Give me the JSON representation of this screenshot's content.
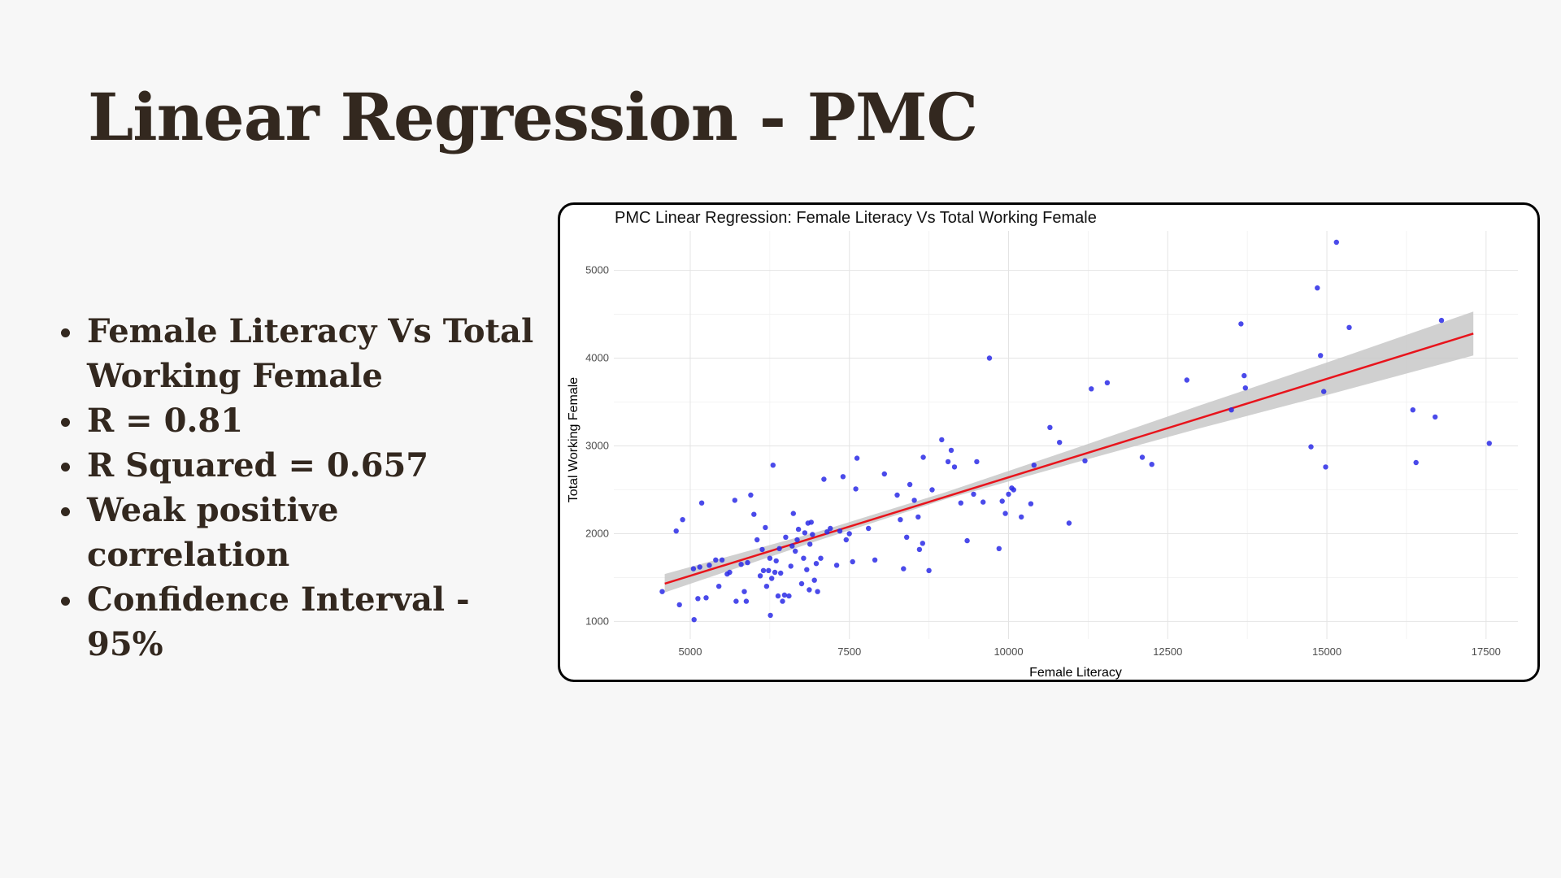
{
  "slide": {
    "title": "Linear Regression - PMC",
    "bullets": [
      "Female Literacy Vs Total Working Female",
      "R = 0.81",
      "R Squared = 0.657",
      "Weak positive correlation",
      "Confidence Interval - 95%"
    ]
  },
  "colors": {
    "title_text": "#33281f",
    "points": "#2a2ae6",
    "regression_line": "#e8141c",
    "confidence_band": "#c8c8c8"
  },
  "chart_data": {
    "type": "scatter",
    "title": "PMC Linear Regression: Female Literacy Vs Total Working Female",
    "xlabel": "Female Literacy",
    "ylabel": "Total Working Female",
    "xlim": [
      3800,
      18000
    ],
    "ylim": [
      800,
      5450
    ],
    "x_ticks": [
      5000,
      7500,
      10000,
      12500,
      15000,
      17500
    ],
    "y_ticks": [
      1000,
      2000,
      3000,
      4000,
      5000
    ],
    "x_tick_labels": [
      "5000",
      "7500",
      "10000",
      "12500",
      "15000",
      "17500"
    ],
    "y_tick_labels": [
      "1000",
      "2000",
      "3000",
      "4000",
      "5000"
    ],
    "grid": true,
    "legend": "none",
    "regression_line": {
      "from": {
        "x": 4600,
        "y": 1430
      },
      "to": {
        "x": 17300,
        "y": 4280
      },
      "confidence": 0.95,
      "band": [
        {
          "x": 4600,
          "lower": 1330,
          "upper": 1540
        },
        {
          "x": 7000,
          "lower": 1920,
          "upper": 2020
        },
        {
          "x": 9000,
          "lower": 2390,
          "upper": 2470
        },
        {
          "x": 11000,
          "lower": 2800,
          "upper": 2960
        },
        {
          "x": 13000,
          "lower": 3200,
          "upper": 3460
        },
        {
          "x": 15000,
          "lower": 3580,
          "upper": 3950
        },
        {
          "x": 17300,
          "lower": 4030,
          "upper": 4530
        }
      ]
    },
    "points": [
      {
        "x": 4560,
        "y": 1340
      },
      {
        "x": 4780,
        "y": 2030
      },
      {
        "x": 4880,
        "y": 2160
      },
      {
        "x": 4830,
        "y": 1190
      },
      {
        "x": 5050,
        "y": 1600
      },
      {
        "x": 5060,
        "y": 1020
      },
      {
        "x": 5120,
        "y": 1260
      },
      {
        "x": 5150,
        "y": 1620
      },
      {
        "x": 5180,
        "y": 2350
      },
      {
        "x": 5250,
        "y": 1270
      },
      {
        "x": 5300,
        "y": 1640
      },
      {
        "x": 5400,
        "y": 1700
      },
      {
        "x": 5450,
        "y": 1400
      },
      {
        "x": 5500,
        "y": 1700
      },
      {
        "x": 5580,
        "y": 1540
      },
      {
        "x": 5620,
        "y": 1560
      },
      {
        "x": 5700,
        "y": 2380
      },
      {
        "x": 5720,
        "y": 1230
      },
      {
        "x": 5800,
        "y": 1650
      },
      {
        "x": 5850,
        "y": 1340
      },
      {
        "x": 5880,
        "y": 1230
      },
      {
        "x": 5900,
        "y": 1670
      },
      {
        "x": 5950,
        "y": 2440
      },
      {
        "x": 6000,
        "y": 2220
      },
      {
        "x": 6050,
        "y": 1930
      },
      {
        "x": 6100,
        "y": 1520
      },
      {
        "x": 6130,
        "y": 1820
      },
      {
        "x": 6150,
        "y": 1580
      },
      {
        "x": 6180,
        "y": 2070
      },
      {
        "x": 6200,
        "y": 1400
      },
      {
        "x": 6230,
        "y": 1580
      },
      {
        "x": 6250,
        "y": 1720
      },
      {
        "x": 6260,
        "y": 1070
      },
      {
        "x": 6280,
        "y": 1490
      },
      {
        "x": 6300,
        "y": 2780
      },
      {
        "x": 6330,
        "y": 1560
      },
      {
        "x": 6350,
        "y": 1690
      },
      {
        "x": 6380,
        "y": 1290
      },
      {
        "x": 6400,
        "y": 1830
      },
      {
        "x": 6420,
        "y": 1550
      },
      {
        "x": 6450,
        "y": 1230
      },
      {
        "x": 6480,
        "y": 1300
      },
      {
        "x": 6500,
        "y": 1960
      },
      {
        "x": 6550,
        "y": 1290
      },
      {
        "x": 6580,
        "y": 1630
      },
      {
        "x": 6600,
        "y": 1860
      },
      {
        "x": 6620,
        "y": 2230
      },
      {
        "x": 6650,
        "y": 1800
      },
      {
        "x": 6680,
        "y": 1930
      },
      {
        "x": 6700,
        "y": 2050
      },
      {
        "x": 6750,
        "y": 1430
      },
      {
        "x": 6780,
        "y": 1720
      },
      {
        "x": 6800,
        "y": 2010
      },
      {
        "x": 6830,
        "y": 1590
      },
      {
        "x": 6850,
        "y": 2120
      },
      {
        "x": 6870,
        "y": 1360
      },
      {
        "x": 6880,
        "y": 1880
      },
      {
        "x": 6900,
        "y": 2130
      },
      {
        "x": 6920,
        "y": 1990
      },
      {
        "x": 6950,
        "y": 1470
      },
      {
        "x": 6980,
        "y": 1660
      },
      {
        "x": 7000,
        "y": 1340
      },
      {
        "x": 7050,
        "y": 1720
      },
      {
        "x": 7100,
        "y": 2620
      },
      {
        "x": 7150,
        "y": 2020
      },
      {
        "x": 7200,
        "y": 2060
      },
      {
        "x": 7300,
        "y": 1640
      },
      {
        "x": 7350,
        "y": 2030
      },
      {
        "x": 7400,
        "y": 2650
      },
      {
        "x": 7450,
        "y": 1930
      },
      {
        "x": 7500,
        "y": 2000
      },
      {
        "x": 7550,
        "y": 1680
      },
      {
        "x": 7600,
        "y": 2510
      },
      {
        "x": 7620,
        "y": 2860
      },
      {
        "x": 7800,
        "y": 2060
      },
      {
        "x": 7900,
        "y": 1700
      },
      {
        "x": 8050,
        "y": 2680
      },
      {
        "x": 8250,
        "y": 2440
      },
      {
        "x": 8300,
        "y": 2160
      },
      {
        "x": 8350,
        "y": 1600
      },
      {
        "x": 8400,
        "y": 1960
      },
      {
        "x": 8450,
        "y": 2560
      },
      {
        "x": 8520,
        "y": 2380
      },
      {
        "x": 8580,
        "y": 2190
      },
      {
        "x": 8600,
        "y": 1820
      },
      {
        "x": 8650,
        "y": 1890
      },
      {
        "x": 8660,
        "y": 2870
      },
      {
        "x": 8750,
        "y": 1580
      },
      {
        "x": 8800,
        "y": 2500
      },
      {
        "x": 8950,
        "y": 3070
      },
      {
        "x": 9050,
        "y": 2820
      },
      {
        "x": 9100,
        "y": 2950
      },
      {
        "x": 9150,
        "y": 2760
      },
      {
        "x": 9250,
        "y": 2350
      },
      {
        "x": 9350,
        "y": 1920
      },
      {
        "x": 9450,
        "y": 2450
      },
      {
        "x": 9500,
        "y": 2820
      },
      {
        "x": 9600,
        "y": 2360
      },
      {
        "x": 9700,
        "y": 4000
      },
      {
        "x": 9850,
        "y": 1830
      },
      {
        "x": 9900,
        "y": 2370
      },
      {
        "x": 9950,
        "y": 2230
      },
      {
        "x": 10000,
        "y": 2450
      },
      {
        "x": 10050,
        "y": 2520
      },
      {
        "x": 10080,
        "y": 2500
      },
      {
        "x": 10200,
        "y": 2190
      },
      {
        "x": 10350,
        "y": 2340
      },
      {
        "x": 10400,
        "y": 2780
      },
      {
        "x": 10650,
        "y": 3210
      },
      {
        "x": 10800,
        "y": 3040
      },
      {
        "x": 10950,
        "y": 2120
      },
      {
        "x": 11200,
        "y": 2830
      },
      {
        "x": 11300,
        "y": 3650
      },
      {
        "x": 11550,
        "y": 3720
      },
      {
        "x": 12100,
        "y": 2870
      },
      {
        "x": 12250,
        "y": 2790
      },
      {
        "x": 12800,
        "y": 3750
      },
      {
        "x": 13500,
        "y": 3410
      },
      {
        "x": 13650,
        "y": 4390
      },
      {
        "x": 13700,
        "y": 3800
      },
      {
        "x": 13720,
        "y": 3660
      },
      {
        "x": 14750,
        "y": 2990
      },
      {
        "x": 14850,
        "y": 4800
      },
      {
        "x": 14900,
        "y": 4030
      },
      {
        "x": 14950,
        "y": 3620
      },
      {
        "x": 14980,
        "y": 2760
      },
      {
        "x": 15150,
        "y": 5320
      },
      {
        "x": 15350,
        "y": 4350
      },
      {
        "x": 16350,
        "y": 3410
      },
      {
        "x": 16400,
        "y": 2810
      },
      {
        "x": 16700,
        "y": 3330
      },
      {
        "x": 16800,
        "y": 4430
      },
      {
        "x": 17550,
        "y": 3030
      }
    ]
  }
}
